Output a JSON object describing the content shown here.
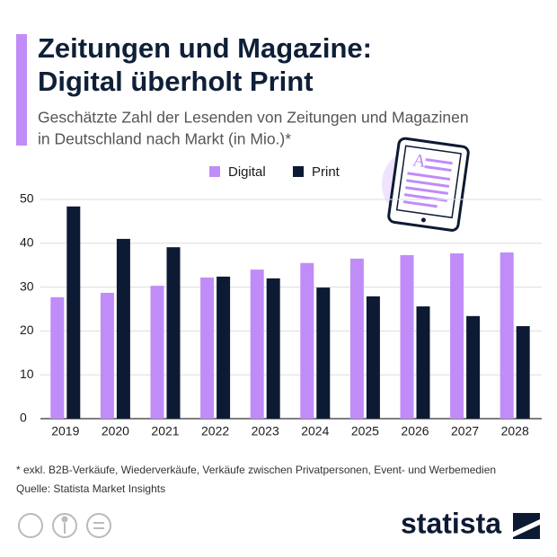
{
  "chart_data": {
    "type": "bar",
    "title": [
      "Zeitungen und Magazine:",
      "Digital überholt Print"
    ],
    "subtitle": [
      "Geschätzte Zahl der Lesenden von Zeitungen und Magazinen",
      "in Deutschland nach Markt (in Mio.)*"
    ],
    "categories": [
      "2019",
      "2020",
      "2021",
      "2022",
      "2023",
      "2024",
      "2025",
      "2026",
      "2027",
      "2028"
    ],
    "series": [
      {
        "name": "Digital",
        "color": "#c08cf8",
        "values": [
          27.7,
          28.7,
          30.3,
          32.2,
          34.0,
          35.5,
          36.5,
          37.3,
          37.7,
          37.9
        ]
      },
      {
        "name": "Print",
        "color": "#0d1a33",
        "values": [
          48.4,
          41.0,
          39.1,
          32.4,
          32.0,
          29.9,
          27.9,
          25.6,
          23.4,
          21.1
        ]
      }
    ],
    "ylim": [
      0,
      50
    ],
    "yticks": [
      0,
      10,
      20,
      30,
      40,
      50
    ],
    "grid": true,
    "footnote": "* exkl. B2B-Verkäufe, Wiederverkäufe, Verkäufe zwischen Privatpersonen, Event- und Werbemedien",
    "source": "Quelle: Statista Market Insights",
    "logo": "statista"
  }
}
